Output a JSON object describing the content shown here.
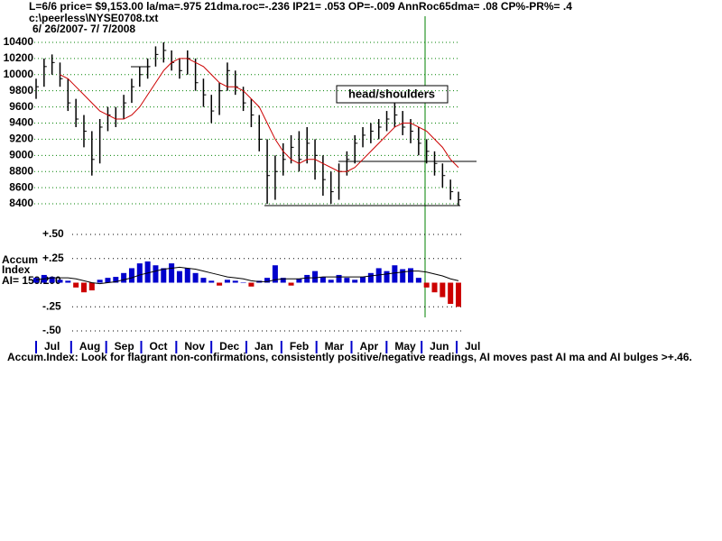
{
  "chart_data": [
    {
      "type": "ohlc",
      "title": "L=6/6  price= $9,153.00  la/ma=.975 21dma.roc=-.236 IP21= .053 OP=-.009 AnnRoc65dma= .08 CP%-PR%=  .4",
      "subtitle": "c:\\peerless\\NYSE0708.txt",
      "date_range": "6/ 26/2007- 7/ 7/2008",
      "annotation": "head/shoulders",
      "categories": [
        "Jul",
        "Aug",
        "Sep",
        "Oct",
        "Nov",
        "Dec",
        "Jan",
        "Feb",
        "Mar",
        "Apr",
        "May",
        "Jun",
        "Jul"
      ],
      "ylim": [
        8300,
        10500
      ],
      "yticks": [
        8400,
        8600,
        8800,
        9000,
        9200,
        9400,
        9600,
        9800,
        10000,
        10200,
        10400
      ],
      "grid": true,
      "grid_color": "#008000",
      "bar_color": "#000000",
      "ma_color": "#cc0000",
      "month_tick_color": "#0000cc",
      "high": [
        9950,
        10200,
        10250,
        10150,
        9950,
        9700,
        9500,
        9300,
        9450,
        9600,
        9600,
        9750,
        9950,
        10100,
        10200,
        10350,
        10400,
        10300,
        10200,
        10300,
        10200,
        9950,
        9750,
        9900,
        10150,
        10050,
        9850,
        9700,
        9500,
        9200,
        9000,
        9150,
        9250,
        9300,
        9350,
        9200,
        9000,
        8800,
        8900,
        9050,
        9250,
        9350,
        9400,
        9450,
        9550,
        9650,
        9550,
        9450,
        9350,
        9200,
        9050,
        8900,
        8700,
        8550
      ],
      "low": [
        9700,
        9850,
        10000,
        9850,
        9550,
        9350,
        9100,
        8750,
        8900,
        9300,
        9350,
        9450,
        9650,
        9850,
        9950,
        10100,
        10150,
        10050,
        9950,
        10000,
        9800,
        9600,
        9400,
        9500,
        9800,
        9750,
        9550,
        9350,
        9050,
        8400,
        8450,
        8750,
        8900,
        8800,
        8900,
        8700,
        8500,
        8400,
        8450,
        8750,
        8900,
        9100,
        9150,
        9200,
        9300,
        9350,
        9250,
        9150,
        9000,
        8900,
        8750,
        8600,
        8450,
        8380
      ],
      "close": [
        9850,
        10100,
        10150,
        9950,
        9650,
        9450,
        9300,
        8950,
        9350,
        9500,
        9450,
        9650,
        9850,
        10000,
        10100,
        10250,
        10300,
        10150,
        10050,
        10200,
        9900,
        9750,
        9550,
        9800,
        10050,
        9850,
        9650,
        9500,
        9200,
        8750,
        8800,
        8950,
        9100,
        8950,
        9150,
        9000,
        8700,
        8550,
        8800,
        8950,
        9150,
        9250,
        9300,
        9350,
        9450,
        9500,
        9350,
        9300,
        9150,
        9050,
        8900,
        8750,
        8550,
        8450
      ],
      "ma": [
        null,
        null,
        null,
        10000,
        9950,
        9850,
        9750,
        9650,
        9550,
        9500,
        9450,
        9450,
        9500,
        9600,
        9750,
        9900,
        10050,
        10150,
        10200,
        10200,
        10150,
        10100,
        10000,
        9900,
        9850,
        9850,
        9800,
        9700,
        9600,
        9400,
        9200,
        9050,
        8950,
        8900,
        8950,
        8950,
        8900,
        8850,
        8800,
        8800,
        8850,
        8950,
        9050,
        9150,
        9250,
        9350,
        9400,
        9400,
        9350,
        9300,
        9200,
        9100,
        8950,
        8850
      ]
    },
    {
      "type": "bar",
      "y_label": [
        "Accum",
        "Index",
        "AI= 159/200"
      ],
      "note": "Accum.Index: Look for flagrant non-confirmations, consistently positive/negative readings, AI moves past AI ma and AI bulges >+.46.",
      "ylim": [
        -0.5,
        0.5
      ],
      "yticks": [
        {
          "value": 0.5,
          "label": "+.50"
        },
        {
          "value": 0.25,
          "label": "+.25"
        },
        {
          "value": -0.25,
          "label": "-.25"
        },
        {
          "value": -0.5,
          "label": "-.50"
        }
      ],
      "grid": true,
      "grid_color": "#000000",
      "positive_color": "#0000cc",
      "negative_color": "#cc0000",
      "ma_color": "#000000",
      "values": [
        0.05,
        0.08,
        0.06,
        0.03,
        0.02,
        -0.05,
        -0.1,
        -0.08,
        0.03,
        0.05,
        0.06,
        0.1,
        0.15,
        0.2,
        0.22,
        0.18,
        0.15,
        0.2,
        0.12,
        0.15,
        0.1,
        0.05,
        0.02,
        -0.03,
        0.03,
        0.02,
        0,
        -0.04,
        0.02,
        0.05,
        0.18,
        0.05,
        -0.03,
        0.04,
        0.08,
        0.12,
        0.06,
        0.03,
        0.08,
        0.05,
        0.03,
        0.06,
        0.1,
        0.15,
        0.12,
        0.18,
        0.14,
        0.15,
        0.05,
        -0.05,
        -0.1,
        -0.15,
        -0.22,
        -0.25
      ],
      "ma": [
        0.03,
        0.04,
        0.05,
        0.05,
        0.05,
        0.04,
        0.02,
        0,
        -0.01,
        0,
        0.01,
        0.03,
        0.05,
        0.08,
        0.1,
        0.12,
        0.14,
        0.15,
        0.16,
        0.15,
        0.14,
        0.12,
        0.1,
        0.08,
        0.06,
        0.05,
        0.04,
        0.02,
        0.01,
        0.01,
        0.03,
        0.04,
        0.04,
        0.04,
        0.05,
        0.05,
        0.06,
        0.06,
        0.06,
        0.06,
        0.06,
        0.06,
        0.07,
        0.08,
        0.09,
        0.1,
        0.11,
        0.12,
        0.12,
        0.11,
        0.09,
        0.07,
        0.04,
        0.02
      ]
    }
  ]
}
